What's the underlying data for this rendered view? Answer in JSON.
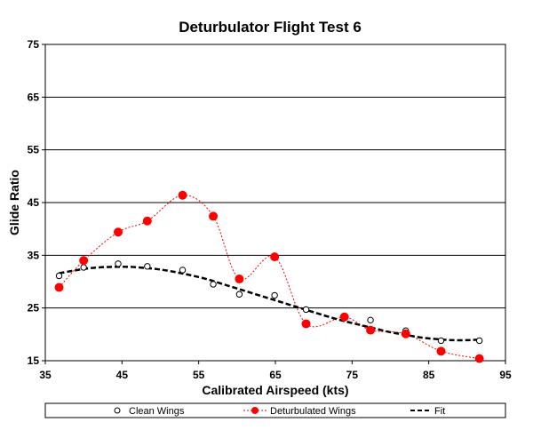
{
  "chart_data": {
    "type": "scatter",
    "title": "Deturbulator Flight Test 6",
    "xlabel": "Calibrated Airspeed  (kts)",
    "ylabel": "Glide Ratio",
    "xlim": [
      35,
      95
    ],
    "ylim": [
      15,
      75
    ],
    "xticks": [
      35,
      45,
      55,
      65,
      75,
      85,
      95
    ],
    "yticks": [
      15,
      25,
      35,
      45,
      55,
      65,
      75
    ],
    "grid": "horizontal",
    "legend_position": "bottom",
    "series": [
      {
        "name": "Clean Wings",
        "style": "open-circle",
        "color": "#000000",
        "x": [
          36.8,
          40.0,
          44.5,
          48.3,
          52.9,
          56.9,
          60.3,
          64.9,
          69.0,
          74.0,
          77.4,
          82.0,
          86.6,
          91.6
        ],
        "y": [
          31.1,
          32.7,
          33.4,
          32.9,
          32.2,
          29.5,
          27.6,
          27.4,
          24.7,
          23.2,
          22.7,
          20.7,
          18.8,
          18.8
        ]
      },
      {
        "name": "Deturbulated Wings",
        "style": "filled-circle-dotted-line",
        "color": "#ff0000",
        "x": [
          36.8,
          40.0,
          44.5,
          48.3,
          52.9,
          56.9,
          60.3,
          64.9,
          69.0,
          74.0,
          77.4,
          82.0,
          86.6,
          91.6
        ],
        "y": [
          28.9,
          34.0,
          39.4,
          41.5,
          46.4,
          42.4,
          30.5,
          34.7,
          22.0,
          23.3,
          20.8,
          20.1,
          16.8,
          15.4
        ]
      },
      {
        "name": "Fit",
        "style": "dashed-line",
        "color": "#000000",
        "x": [
          36.8,
          40,
          42,
          44,
          46,
          48,
          50,
          52,
          54,
          56,
          58,
          60,
          62,
          64,
          66,
          68,
          70,
          72,
          74,
          76,
          78,
          80,
          82,
          84,
          86,
          88,
          90,
          91.6
        ],
        "y": [
          31.6,
          32.4,
          32.7,
          32.8,
          32.8,
          32.6,
          32.3,
          31.8,
          31.2,
          30.5,
          29.6,
          28.7,
          27.8,
          26.9,
          26.0,
          25.1,
          24.2,
          23.3,
          22.5,
          21.8,
          21.1,
          20.4,
          19.9,
          19.4,
          19.1,
          18.9,
          18.9,
          19.0
        ]
      }
    ]
  },
  "colors": {
    "grid": "#000000",
    "deturbulated": "#ff0000",
    "clean": "#000000",
    "fit": "#000000"
  }
}
